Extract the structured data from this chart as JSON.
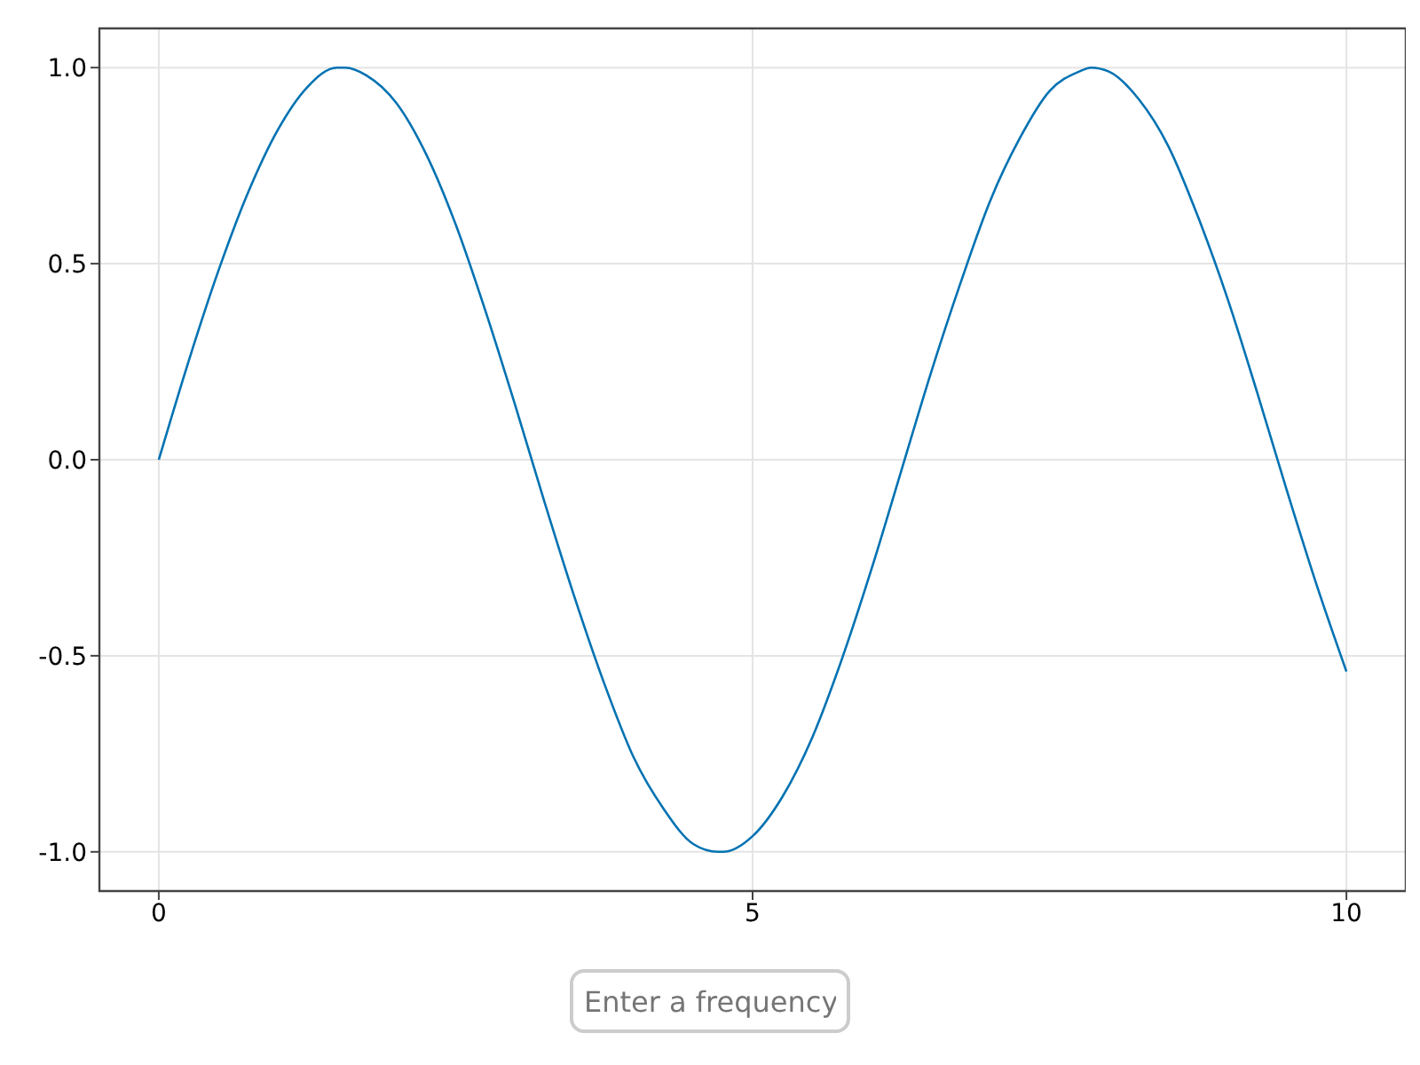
{
  "chart_data": {
    "type": "line",
    "x": [
      0,
      0.25,
      0.5,
      0.75,
      1,
      1.25,
      1.5,
      1.57,
      1.75,
      2,
      2.25,
      2.5,
      2.75,
      3,
      3.25,
      3.5,
      3.75,
      4,
      4.25,
      4.5,
      4.71,
      4.75,
      5,
      5.25,
      5.5,
      5.75,
      6,
      6.25,
      6.5,
      6.75,
      7,
      7.25,
      7.5,
      7.75,
      7.85,
      8,
      8.25,
      8.5,
      8.75,
      9,
      9.25,
      9.5,
      9.75,
      10
    ],
    "series": [
      {
        "color": "#0072b2",
        "values": [
          0,
          0.25,
          0.48,
          0.68,
          0.84,
          0.95,
          1.0,
          1.0,
          0.98,
          0.91,
          0.78,
          0.6,
          0.38,
          0.14,
          -0.11,
          -0.35,
          -0.57,
          -0.76,
          -0.89,
          -0.98,
          -1.0,
          -1.0,
          -0.96,
          -0.86,
          -0.71,
          -0.51,
          -0.28,
          -0.03,
          0.22,
          0.45,
          0.66,
          0.82,
          0.94,
          0.99,
          1.0,
          0.99,
          0.92,
          0.8,
          0.62,
          0.41,
          0.17,
          -0.08,
          -0.32,
          -0.54
        ]
      }
    ],
    "xlim": [
      -0.5,
      10.5
    ],
    "xticks": [
      0,
      5,
      10
    ],
    "ylim": [
      -1.1,
      1.1
    ],
    "yticks": [
      {
        "value": -1,
        "label": "-1.0"
      },
      {
        "value": -0.5,
        "label": "-0.5"
      },
      {
        "value": 0,
        "label": "0.0"
      },
      {
        "value": 0.5,
        "label": "0.5"
      },
      {
        "value": 1,
        "label": "1.0"
      }
    ],
    "grid": true,
    "marker": "none",
    "line_style": "solid",
    "annotations": [
      "Enter a frequency"
    ]
  }
}
